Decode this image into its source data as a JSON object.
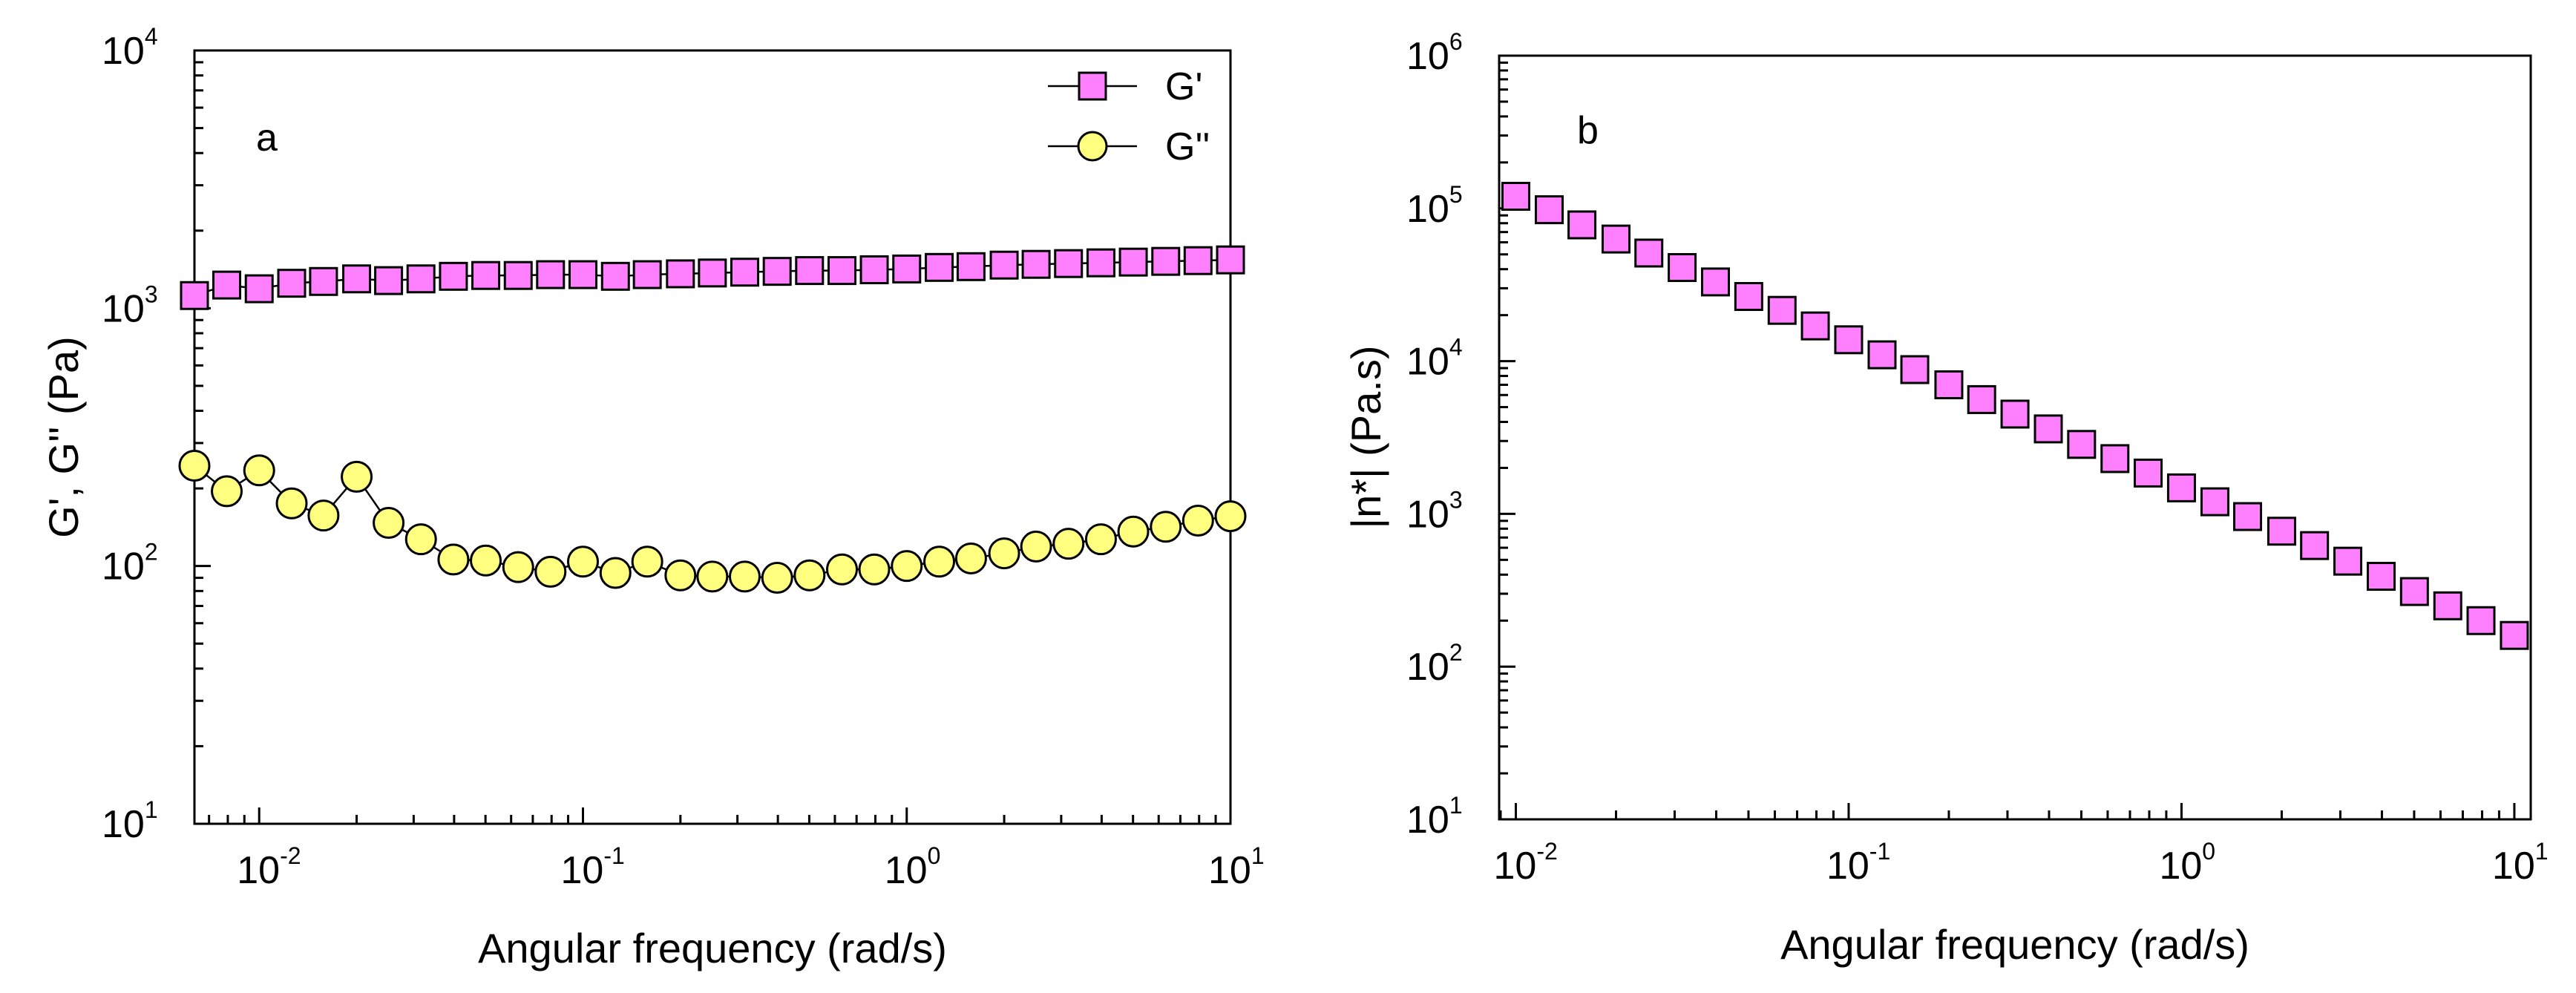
{
  "colors": {
    "gprime": "#ff80ff",
    "gdouble": "#ffff80",
    "eta": "#ff80ff",
    "stroke": "#000000"
  },
  "chart_data": [
    {
      "id": "a",
      "type": "scatter",
      "panel_label": "a",
      "xlabel": "Angular frequency (rad/s)",
      "ylabel": "G', G'' (Pa)",
      "xscale": "log",
      "yscale": "log",
      "xlim": [
        0.00631,
        10
      ],
      "ylim": [
        10,
        10000
      ],
      "xticks": [
        {
          "base": "10",
          "exp": "-2"
        },
        {
          "base": "10",
          "exp": "-1"
        },
        {
          "base": "10",
          "exp": "0"
        },
        {
          "base": "10",
          "exp": "1"
        }
      ],
      "yticks": [
        {
          "base": "10",
          "exp": "1"
        },
        {
          "base": "10",
          "exp": "2"
        },
        {
          "base": "10",
          "exp": "3"
        },
        {
          "base": "10",
          "exp": "4"
        }
      ],
      "legend_position": "top-right",
      "x": [
        0.00631,
        0.00794,
        0.01,
        0.0126,
        0.0158,
        0.02,
        0.0251,
        0.0316,
        0.0398,
        0.0501,
        0.0631,
        0.0794,
        0.1,
        0.126,
        0.158,
        0.2,
        0.251,
        0.316,
        0.398,
        0.501,
        0.631,
        0.794,
        1,
        1.26,
        1.58,
        2,
        2.51,
        3.16,
        3.98,
        5.01,
        6.31,
        7.94,
        10
      ],
      "series": [
        {
          "name": "G'",
          "marker": "square",
          "values": [
            1120,
            1230,
            1190,
            1250,
            1270,
            1300,
            1280,
            1300,
            1330,
            1340,
            1340,
            1350,
            1350,
            1330,
            1350,
            1360,
            1370,
            1380,
            1390,
            1400,
            1400,
            1410,
            1420,
            1440,
            1450,
            1470,
            1480,
            1490,
            1500,
            1510,
            1520,
            1530,
            1540
          ]
        },
        {
          "name": "G''",
          "marker": "circle",
          "values": [
            245,
            195,
            235,
            175,
            157,
            222,
            147,
            127,
            106,
            105,
            99,
            95,
            104,
            94,
            104,
            92,
            91,
            91,
            90,
            92,
            97,
            97,
            100,
            104,
            107,
            112,
            119,
            122,
            127,
            136,
            142,
            150,
            156
          ]
        }
      ]
    },
    {
      "id": "b",
      "type": "scatter",
      "panel_label": "b",
      "xlabel": "Angular frequency (rad/s)",
      "ylabel": "|n*| (Pa.s)",
      "xscale": "log",
      "yscale": "log",
      "xlim": [
        0.00891,
        11.2
      ],
      "ylim": [
        10,
        1000000
      ],
      "xticks": [
        {
          "base": "10",
          "exp": "-2"
        },
        {
          "base": "10",
          "exp": "-1"
        },
        {
          "base": "10",
          "exp": "0"
        },
        {
          "base": "10",
          "exp": "1"
        }
      ],
      "yticks": [
        {
          "base": "10",
          "exp": "1"
        },
        {
          "base": "10",
          "exp": "2"
        },
        {
          "base": "10",
          "exp": "3"
        },
        {
          "base": "10",
          "exp": "4"
        },
        {
          "base": "10",
          "exp": "5"
        },
        {
          "base": "10",
          "exp": "6"
        }
      ],
      "x": [
        0.01,
        0.0126,
        0.0158,
        0.02,
        0.0251,
        0.0316,
        0.0398,
        0.0501,
        0.0631,
        0.0794,
        0.1,
        0.126,
        0.158,
        0.2,
        0.251,
        0.316,
        0.398,
        0.501,
        0.631,
        0.794,
        1,
        1.26,
        1.58,
        2,
        2.51,
        3.16,
        3.98,
        5.01,
        6.31,
        7.94,
        10
      ],
      "series": [
        {
          "name": "|n*|",
          "marker": "square",
          "values": [
            120000,
            98000,
            78000,
            63000,
            51000,
            41000,
            33000,
            26500,
            21500,
            17000,
            13800,
            11000,
            8800,
            7000,
            5600,
            4500,
            3600,
            2850,
            2300,
            1850,
            1480,
            1200,
            960,
            770,
            620,
            490,
            390,
            310,
            250,
            200,
            160
          ]
        }
      ]
    }
  ]
}
